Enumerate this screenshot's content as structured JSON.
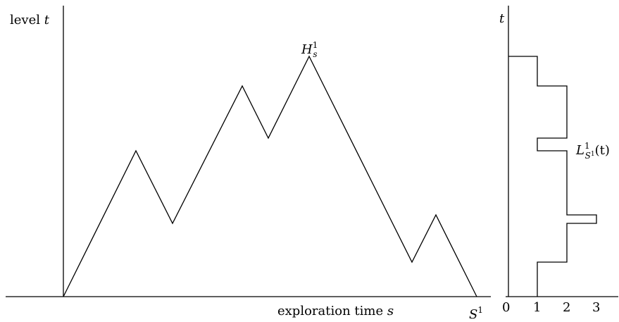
{
  "left_diagram": {
    "y_axis_label": {
      "prefix": "level ",
      "var": "t"
    },
    "x_axis_label": {
      "prefix": "exploration time ",
      "var": "s"
    },
    "end_label": {
      "var": "S",
      "sup": "1"
    },
    "peak_label": {
      "var": "H",
      "sup": "1",
      "sub": "s"
    },
    "contour_points": [
      {
        "s": 0,
        "t": 0
      },
      {
        "s": 1,
        "t": 6.45
      },
      {
        "s": 1.5,
        "t": 3.22
      },
      {
        "s": 2.43,
        "t": 9.31
      },
      {
        "s": 2.79,
        "t": 6.98
      },
      {
        "s": 3.34,
        "t": 10.61
      },
      {
        "s": 4.7,
        "t": 1.56
      },
      {
        "s": 5.0,
        "t": 3.63
      },
      {
        "s": 5.62,
        "t": 0
      }
    ]
  },
  "right_diagram": {
    "y_axis_label": {
      "var": "t"
    },
    "curve_label": {
      "var": "L",
      "sup": "1",
      "sub_var": "S",
      "sub_sup": "1",
      "arg": "(t)"
    },
    "x_ticks": [
      "0",
      "1",
      "2",
      "3"
    ],
    "local_time_profile": [
      {
        "t_from": 0,
        "t_to": 1.56,
        "value": 1
      },
      {
        "t_from": 1.56,
        "t_to": 3.22,
        "value": 2
      },
      {
        "t_from": 3.22,
        "t_to": 3.63,
        "value": 3
      },
      {
        "t_from": 3.63,
        "t_to": 6.45,
        "value": 2
      },
      {
        "t_from": 6.45,
        "t_to": 6.98,
        "value": 1
      },
      {
        "t_from": 6.98,
        "t_to": 9.31,
        "value": 2
      },
      {
        "t_from": 9.31,
        "t_to": 10.61,
        "value": 1
      },
      {
        "t_from": 10.61,
        "t_to": 10.61,
        "value": 0
      }
    ]
  }
}
